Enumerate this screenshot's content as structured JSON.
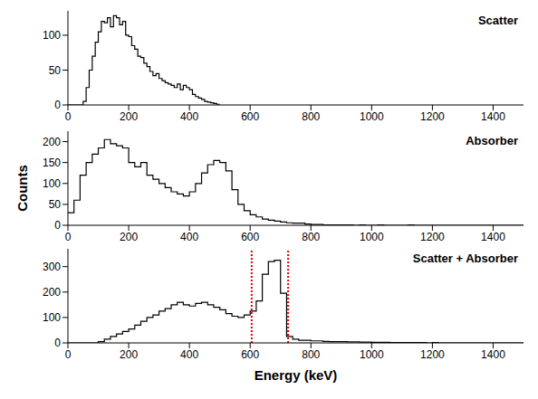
{
  "chart_data": [
    {
      "type": "histogram",
      "title": "Scatter",
      "color": "#000000",
      "bins": [
        0,
        10,
        20,
        30,
        40,
        50,
        60,
        70,
        80,
        90,
        100,
        110,
        120,
        130,
        140,
        150,
        160,
        170,
        180,
        190,
        200,
        210,
        220,
        230,
        240,
        250,
        260,
        270,
        280,
        290,
        300,
        310,
        320,
        330,
        340,
        350,
        360,
        370,
        380,
        390,
        400,
        410,
        420,
        430,
        440,
        450,
        460,
        470,
        480,
        490,
        500
      ],
      "values": [
        0,
        0,
        0,
        0,
        0,
        5,
        25,
        50,
        70,
        90,
        105,
        120,
        118,
        125,
        112,
        128,
        125,
        115,
        120,
        100,
        98,
        85,
        80,
        70,
        68,
        60,
        55,
        48,
        42,
        45,
        38,
        35,
        32,
        30,
        28,
        25,
        30,
        22,
        28,
        25,
        22,
        15,
        12,
        10,
        8,
        5,
        4,
        3,
        2,
        1
      ],
      "xlim": [
        0,
        1500
      ],
      "xticks": [
        0,
        200,
        400,
        600,
        800,
        1000,
        1200,
        1400
      ],
      "ylim": [
        0,
        135
      ],
      "yticks": [
        0,
        50,
        100
      ]
    },
    {
      "type": "histogram",
      "title": "Absorber",
      "color": "#000000",
      "ylabel": "Counts",
      "bins": [
        0,
        20,
        40,
        60,
        80,
        100,
        120,
        140,
        160,
        180,
        200,
        220,
        240,
        260,
        280,
        300,
        320,
        340,
        360,
        380,
        400,
        420,
        440,
        460,
        480,
        500,
        520,
        540,
        560,
        580,
        600,
        620,
        640,
        660,
        680,
        700,
        720,
        740,
        760,
        780,
        800,
        820,
        840,
        860,
        880,
        900,
        920,
        940,
        960,
        980,
        1000,
        1020,
        1040,
        1060,
        1080,
        1100,
        1120,
        1140,
        1160,
        1180,
        1200,
        1220,
        1240,
        1260,
        1280,
        1300,
        1320,
        1340,
        1360,
        1380,
        1400,
        1420,
        1440,
        1460,
        1480,
        1500
      ],
      "values": [
        30,
        60,
        120,
        150,
        170,
        185,
        205,
        195,
        190,
        185,
        150,
        140,
        150,
        120,
        110,
        100,
        90,
        80,
        75,
        70,
        80,
        100,
        125,
        145,
        155,
        150,
        130,
        85,
        50,
        35,
        25,
        20,
        15,
        12,
        10,
        8,
        6,
        5,
        5,
        3,
        2,
        2,
        1,
        1,
        1,
        1,
        1,
        0,
        1,
        0,
        0,
        1,
        0,
        0,
        0,
        0,
        1,
        0,
        0,
        0,
        0,
        0,
        0,
        0,
        0,
        0,
        0,
        0,
        0,
        0,
        0,
        0,
        0,
        0,
        0
      ],
      "xlim": [
        0,
        1500
      ],
      "xticks": [
        0,
        200,
        400,
        600,
        800,
        1000,
        1200,
        1400
      ],
      "ylim": [
        0,
        225
      ],
      "yticks": [
        0,
        50,
        100,
        150,
        200
      ]
    },
    {
      "type": "histogram",
      "title": "Scatter + Absorber",
      "color": "#000000",
      "xlabel": "Energy (keV)",
      "bins": [
        0,
        20,
        40,
        60,
        80,
        100,
        120,
        140,
        160,
        180,
        200,
        220,
        240,
        260,
        280,
        300,
        320,
        340,
        360,
        380,
        400,
        420,
        440,
        460,
        480,
        500,
        520,
        540,
        560,
        580,
        600,
        620,
        640,
        660,
        680,
        700,
        720,
        740,
        760,
        780,
        800,
        820,
        840,
        860,
        880,
        900,
        920,
        940,
        960,
        980,
        1000,
        1020,
        1040,
        1060,
        1080,
        1100,
        1120,
        1140,
        1160,
        1180,
        1200,
        1220,
        1240,
        1260,
        1280,
        1300,
        1320,
        1340,
        1360,
        1380,
        1400,
        1420,
        1440,
        1460,
        1480,
        1500
      ],
      "values": [
        0,
        0,
        0,
        0,
        0,
        5,
        15,
        25,
        35,
        45,
        55,
        70,
        85,
        100,
        110,
        125,
        135,
        150,
        160,
        150,
        145,
        155,
        160,
        150,
        140,
        130,
        115,
        105,
        100,
        110,
        125,
        165,
        270,
        320,
        325,
        195,
        25,
        15,
        10,
        10,
        8,
        8,
        6,
        5,
        5,
        5,
        4,
        4,
        3,
        3,
        2,
        2,
        2,
        1,
        1,
        1,
        1,
        1,
        1,
        0,
        1,
        0,
        0,
        0,
        0,
        0,
        0,
        0,
        0,
        0,
        0,
        0,
        0,
        0,
        0
      ],
      "xlim": [
        0,
        1500
      ],
      "xticks": [
        0,
        200,
        400,
        600,
        800,
        1000,
        1200,
        1400
      ],
      "ylim": [
        0,
        370
      ],
      "yticks": [
        0,
        100,
        200,
        300
      ],
      "annotations": [
        {
          "type": "vline",
          "x": 605,
          "color": "#e00000",
          "line_style": "dotted"
        },
        {
          "type": "vline",
          "x": 725,
          "color": "#e00000",
          "line_style": "dotted"
        }
      ]
    }
  ]
}
